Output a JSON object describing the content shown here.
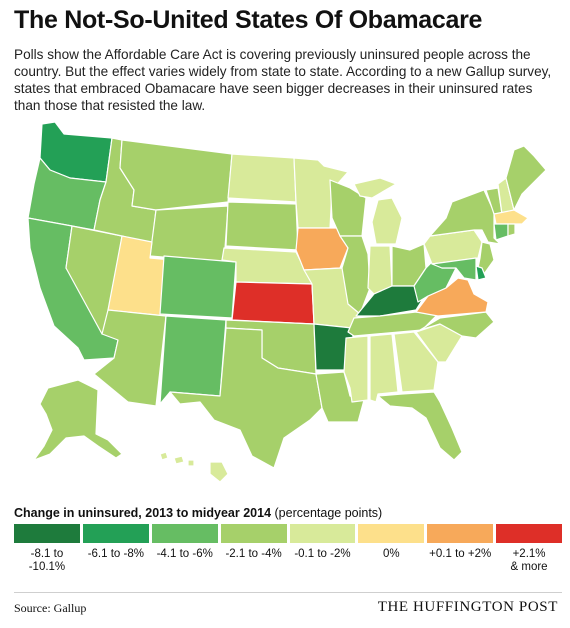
{
  "header": {
    "title": "The Not-So-United States Of Obamacare",
    "subtitle": "Polls show the Affordable Care Act is covering previously uninsured people across the country. But the effect varies widely from state to state. According to a new Gallup survey, states that embraced Obamacare have seen bigger decreases in their uninsured rates than those that resisted the law."
  },
  "chart_data": {
    "type": "choropleth",
    "title": "The Not-So-United States Of Obamacare",
    "legend_title": "Change in uninsured, 2013 to midyear 2014",
    "legend_unit": "(percentage points)",
    "bins": [
      {
        "id": "b1",
        "label": "-8.1 to\n-10.1%",
        "color": "#1e7b3c"
      },
      {
        "id": "b2",
        "label": "-6.1 to -8%",
        "color": "#23a056"
      },
      {
        "id": "b3",
        "label": "-4.1 to -6%",
        "color": "#66bd63"
      },
      {
        "id": "b4",
        "label": "-2.1 to -4%",
        "color": "#a6d06a"
      },
      {
        "id": "b5",
        "label": "-0.1 to -2%",
        "color": "#d8ea9a"
      },
      {
        "id": "b6",
        "label": "0%",
        "color": "#fde08b"
      },
      {
        "id": "b7",
        "label": "+0.1 to +2%",
        "color": "#f7a95a"
      },
      {
        "id": "b8",
        "label": "+2.1%\n& more",
        "color": "#de2f28"
      }
    ],
    "states": {
      "WA": "b2",
      "OR": "b3",
      "CA": "b3",
      "NV": "b4",
      "ID": "b4",
      "MT": "b4",
      "WY": "b4",
      "UT": "b6",
      "AZ": "b4",
      "CO": "b3",
      "NM": "b3",
      "ND": "b5",
      "SD": "b4",
      "NE": "b5",
      "KS": "b8",
      "OK": "b4",
      "TX": "b4",
      "MN": "b5",
      "IA": "b7",
      "MO": "b5",
      "AR": "b1",
      "LA": "b4",
      "WI": "b4",
      "IL": "b4",
      "MI": "b5",
      "IN": "b5",
      "OH": "b4",
      "KY": "b1",
      "TN": "b4",
      "MS": "b5",
      "AL": "b5",
      "GA": "b5",
      "FL": "b4",
      "SC": "b5",
      "NC": "b4",
      "VA": "b7",
      "WV": "b3",
      "PA": "b5",
      "NY": "b4",
      "VT": "b4",
      "NH": "b5",
      "ME": "b4",
      "MA": "b6",
      "RI": "b4",
      "CT": "b3",
      "NJ": "b4",
      "DE": "b2",
      "MD": "b3",
      "AK": "b4",
      "HI": "b5"
    }
  },
  "footer": {
    "source": "Source: Gallup",
    "brand": "THE HUFFINGTON POST"
  }
}
